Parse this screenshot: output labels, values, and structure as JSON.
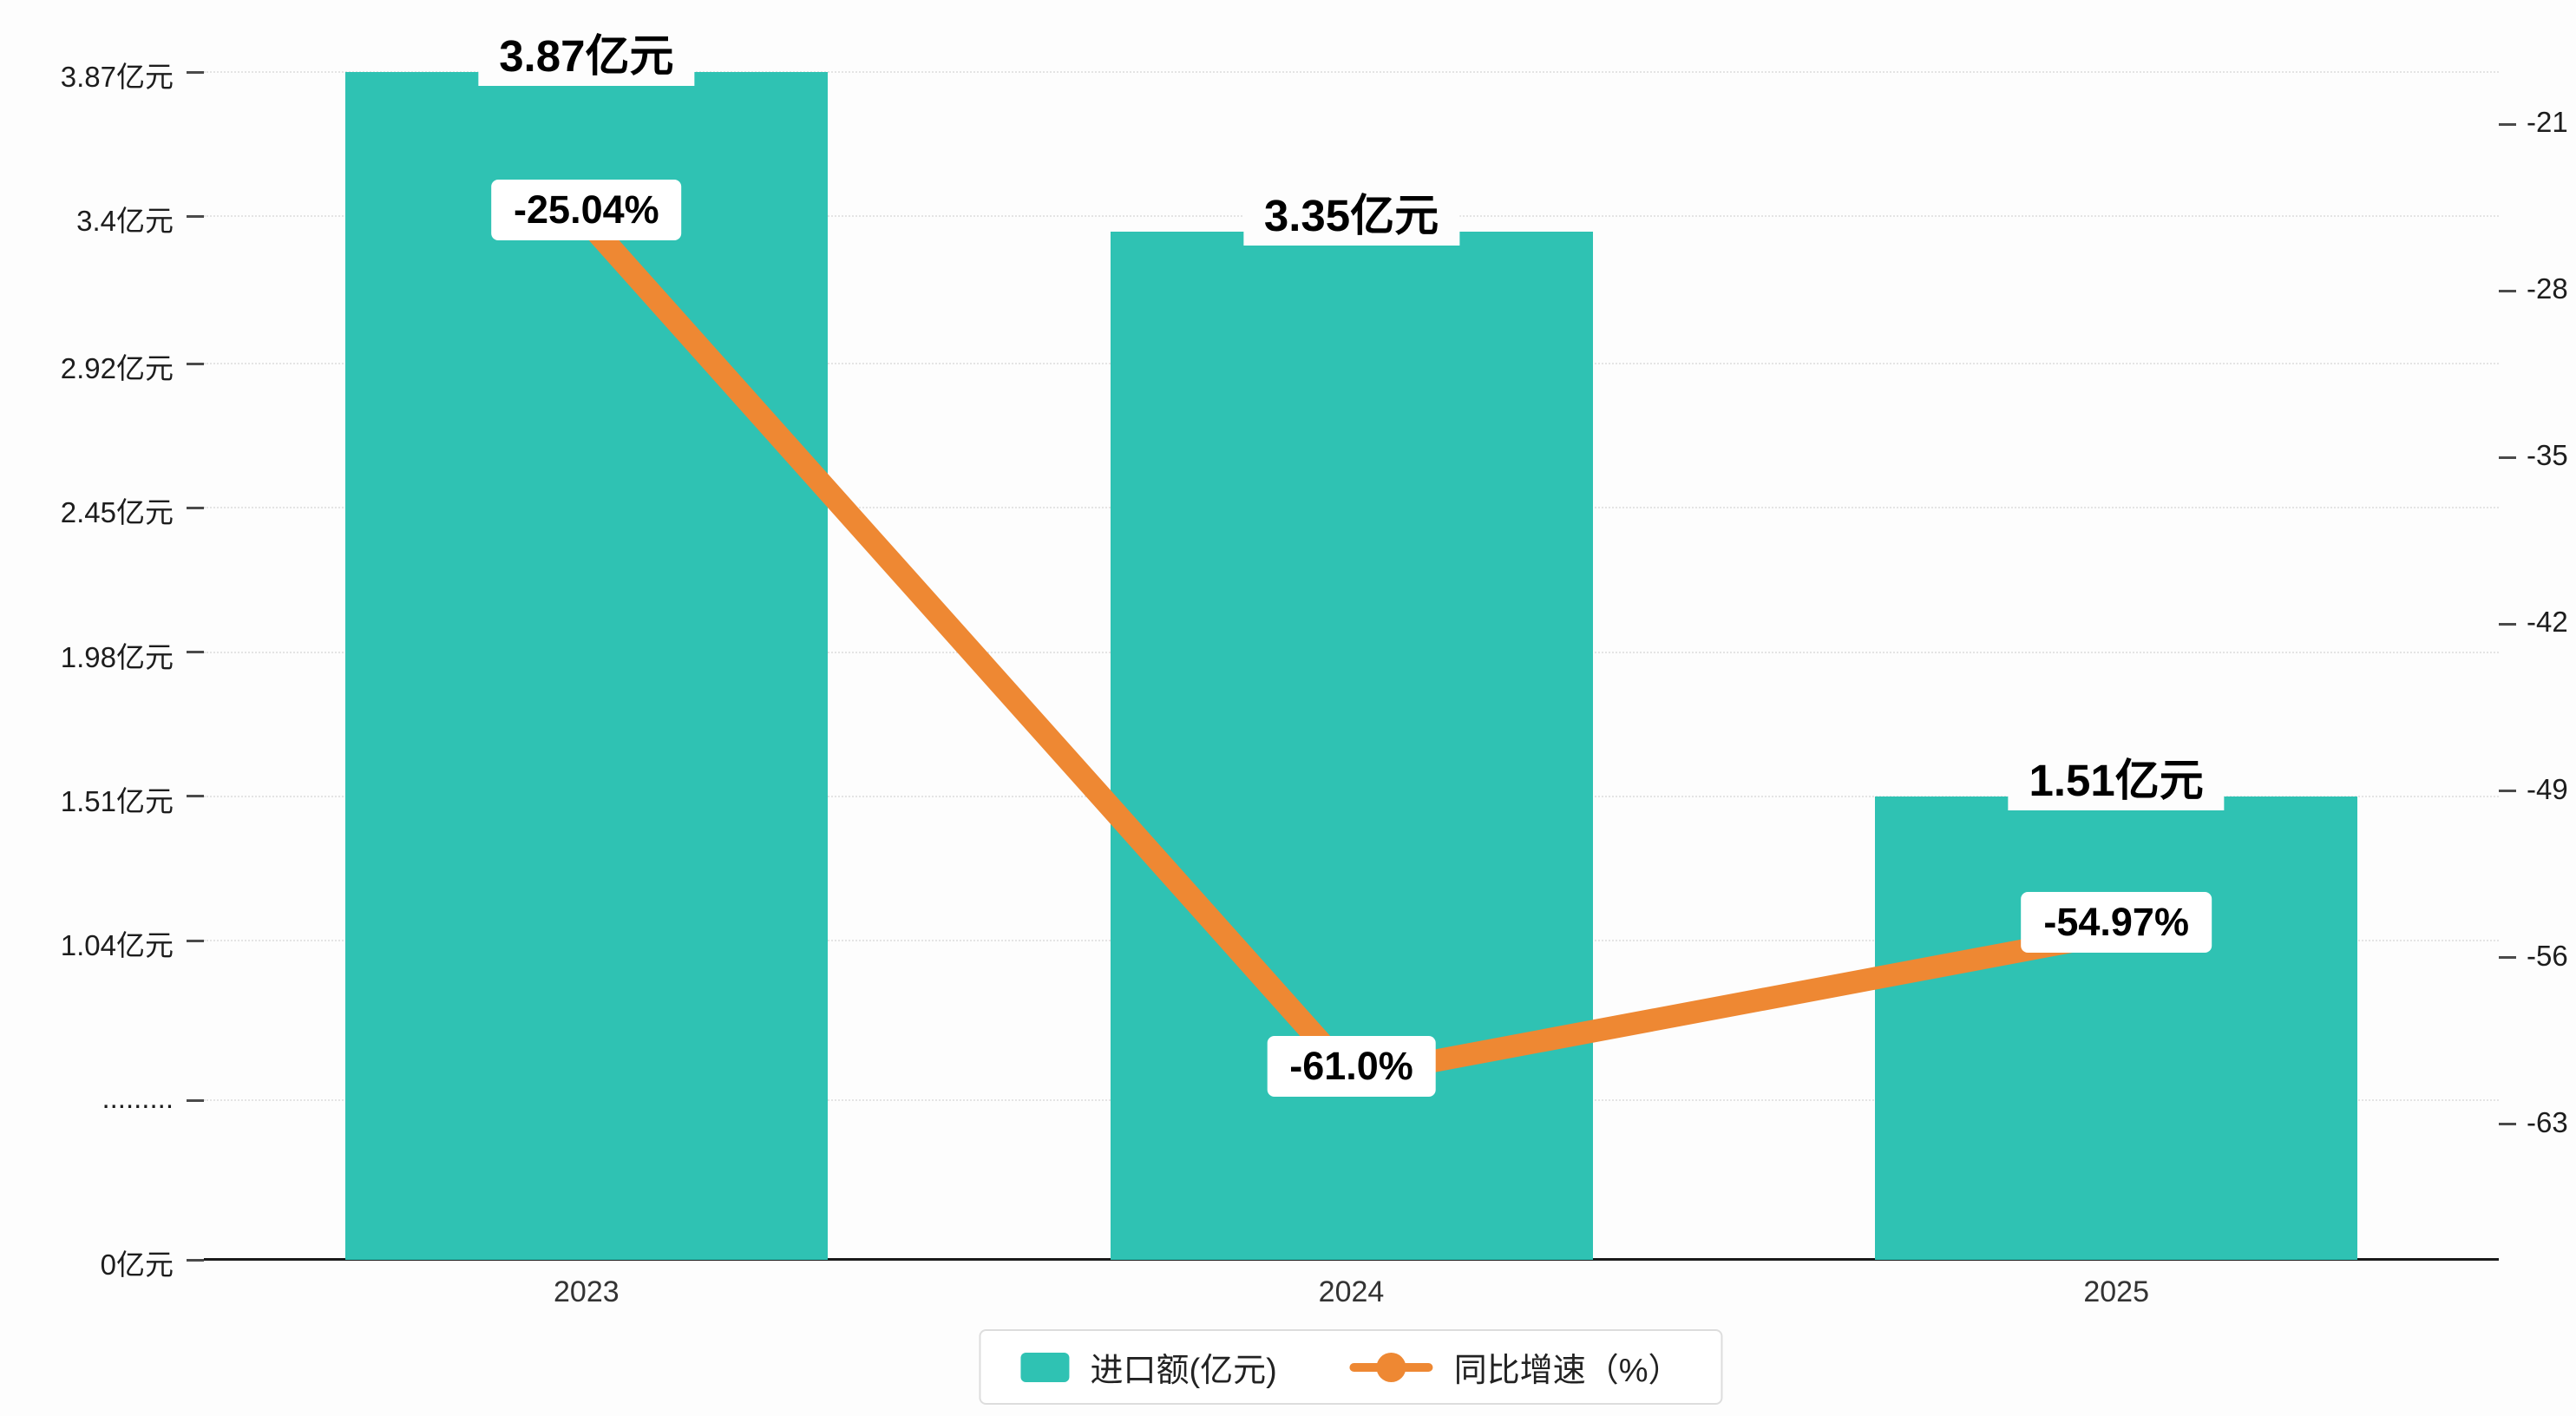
{
  "chart_data": {
    "type": "bar",
    "title": "",
    "categories": [
      "2023",
      "2024",
      "2025"
    ],
    "series": [
      {
        "name": "进口额(亿元)",
        "type": "bar",
        "color": "#2fc2b3",
        "values": [
          3.87,
          3.35,
          1.51
        ],
        "data_labels": [
          "3.87亿元",
          "3.35亿元",
          "1.51亿元"
        ]
      },
      {
        "name": "同比增速（%）",
        "type": "line",
        "color": "#ee8833",
        "values": [
          -25.04,
          -61.0,
          -54.97
        ],
        "data_labels": [
          "-25.04%",
          "-61.0%",
          "-54.97%"
        ]
      }
    ],
    "left_axis": {
      "range": [
        0,
        3.87
      ],
      "ticks": [
        {
          "label": "3.87亿元",
          "value": 3.87
        },
        {
          "label": "3.4亿元",
          "value": 3.4
        },
        {
          "label": "2.92亿元",
          "value": 2.92
        },
        {
          "label": "2.45亿元",
          "value": 2.45
        },
        {
          "label": "1.98亿元",
          "value": 1.98
        },
        {
          "label": "1.51亿元",
          "value": 1.51
        },
        {
          "label": "1.04亿元",
          "value": 1.04
        },
        {
          "label": ".........",
          "value": 0.52
        },
        {
          "label": "0亿元",
          "value": 0
        }
      ]
    },
    "right_axis": {
      "range": [
        -68.7,
        -18.8
      ],
      "ticks": [
        {
          "label": "-21",
          "value": -21
        },
        {
          "label": "-28",
          "value": -28
        },
        {
          "label": "-35",
          "value": -35
        },
        {
          "label": "-42",
          "value": -42
        },
        {
          "label": "-49",
          "value": -49
        },
        {
          "label": "-56",
          "value": -56
        },
        {
          "label": "-63",
          "value": -63
        }
      ]
    },
    "legend": {
      "position": "bottom",
      "items": [
        {
          "label": "进口额(亿元)",
          "marker": "rect",
          "color": "#2fc2b3"
        },
        {
          "label": "同比增速（%）",
          "marker": "line-dot",
          "color": "#ee8833"
        }
      ]
    },
    "grid": {
      "horizontal": true,
      "style": "dotted"
    }
  }
}
